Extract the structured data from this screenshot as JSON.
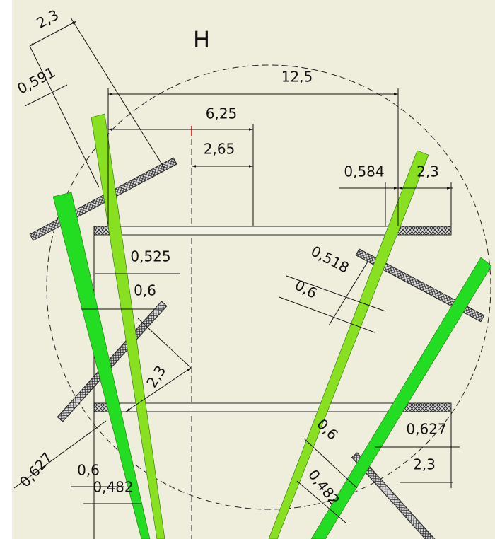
{
  "title": "H",
  "dimensions": [
    "12,5",
    "6,25",
    "2,65",
    "2,3",
    "0,591",
    "0,584",
    "2,3",
    "0,525",
    "0,6",
    "0,518",
    "0,6",
    "2,3",
    "0,627",
    "0,6",
    "0,482",
    "0,6",
    "0,482",
    "0,627",
    "2,3"
  ]
}
